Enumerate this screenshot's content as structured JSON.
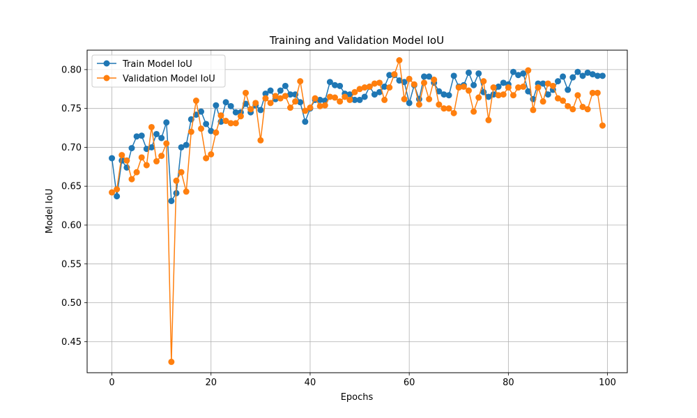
{
  "chart_data": {
    "type": "line",
    "title": "Training and Validation Model IoU",
    "xlabel": "Epochs",
    "ylabel": "Model IoU",
    "xlim": [
      -5,
      104
    ],
    "ylim": [
      0.41,
      0.825
    ],
    "xticks": [
      0,
      20,
      40,
      60,
      80,
      100
    ],
    "yticks": [
      0.45,
      0.5,
      0.55,
      0.6,
      0.65,
      0.7,
      0.75,
      0.8
    ],
    "grid": true,
    "legend": "top-left",
    "x": [
      0,
      1,
      2,
      3,
      4,
      5,
      6,
      7,
      8,
      9,
      10,
      11,
      12,
      13,
      14,
      15,
      16,
      17,
      18,
      19,
      20,
      21,
      22,
      23,
      24,
      25,
      26,
      27,
      28,
      29,
      30,
      31,
      32,
      33,
      34,
      35,
      36,
      37,
      38,
      39,
      40,
      41,
      42,
      43,
      44,
      45,
      46,
      47,
      48,
      49,
      50,
      51,
      52,
      53,
      54,
      55,
      56,
      57,
      58,
      59,
      60,
      61,
      62,
      63,
      64,
      65,
      66,
      67,
      68,
      69,
      70,
      71,
      72,
      73,
      74,
      75,
      76,
      77,
      78,
      79,
      80,
      81,
      82,
      83,
      84,
      85,
      86,
      87,
      88,
      89,
      90,
      91,
      92,
      93,
      94,
      95,
      96,
      97,
      98,
      99
    ],
    "series": [
      {
        "name": "Train Model IoU",
        "color": "#1f77b4",
        "values": [
          0.686,
          0.637,
          0.683,
          0.674,
          0.699,
          0.714,
          0.715,
          0.698,
          0.7,
          0.717,
          0.712,
          0.732,
          0.631,
          0.641,
          0.7,
          0.703,
          0.736,
          0.742,
          0.746,
          0.73,
          0.721,
          0.754,
          0.733,
          0.758,
          0.753,
          0.745,
          0.745,
          0.756,
          0.745,
          0.754,
          0.748,
          0.769,
          0.773,
          0.762,
          0.773,
          0.779,
          0.768,
          0.768,
          0.758,
          0.733,
          0.75,
          0.761,
          0.761,
          0.76,
          0.784,
          0.78,
          0.779,
          0.769,
          0.768,
          0.761,
          0.761,
          0.765,
          0.778,
          0.768,
          0.771,
          0.778,
          0.793,
          0.793,
          0.786,
          0.784,
          0.757,
          0.78,
          0.762,
          0.791,
          0.791,
          0.783,
          0.772,
          0.768,
          0.767,
          0.792,
          0.778,
          0.78,
          0.796,
          0.78,
          0.795,
          0.771,
          0.765,
          0.768,
          0.778,
          0.783,
          0.781,
          0.797,
          0.793,
          0.795,
          0.772,
          0.762,
          0.782,
          0.782,
          0.768,
          0.774,
          0.785,
          0.791,
          0.774,
          0.79,
          0.797,
          0.792,
          0.796,
          0.794,
          0.792,
          0.792
        ]
      },
      {
        "name": "Validation Model IoU",
        "color": "#ff7f0e",
        "values": [
          0.642,
          0.646,
          0.69,
          0.683,
          0.659,
          0.668,
          0.687,
          0.677,
          0.726,
          0.682,
          0.689,
          0.705,
          0.424,
          0.657,
          0.668,
          0.643,
          0.72,
          0.76,
          0.724,
          0.686,
          0.691,
          0.719,
          0.741,
          0.734,
          0.731,
          0.731,
          0.74,
          0.77,
          0.749,
          0.757,
          0.709,
          0.763,
          0.757,
          0.766,
          0.763,
          0.766,
          0.751,
          0.759,
          0.785,
          0.747,
          0.751,
          0.763,
          0.753,
          0.754,
          0.765,
          0.764,
          0.759,
          0.765,
          0.761,
          0.771,
          0.775,
          0.777,
          0.778,
          0.782,
          0.783,
          0.761,
          0.777,
          0.794,
          0.812,
          0.762,
          0.788,
          0.781,
          0.755,
          0.783,
          0.762,
          0.787,
          0.755,
          0.75,
          0.75,
          0.744,
          0.777,
          0.778,
          0.773,
          0.746,
          0.764,
          0.785,
          0.735,
          0.777,
          0.767,
          0.768,
          0.777,
          0.767,
          0.777,
          0.778,
          0.799,
          0.748,
          0.777,
          0.759,
          0.782,
          0.779,
          0.763,
          0.76,
          0.753,
          0.749,
          0.767,
          0.752,
          0.749,
          0.77,
          0.77,
          0.728
        ]
      }
    ]
  }
}
